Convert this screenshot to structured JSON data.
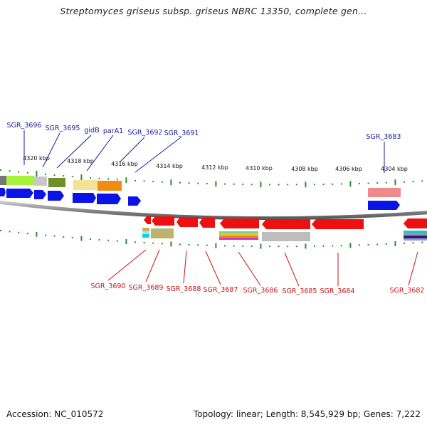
{
  "title": "Streptomyces griseus subsp. griseus NBRC 13350, complete gen...",
  "footer": {
    "accession": "Accession: NC_010572",
    "summary": "Topology: linear; Length: 8,545,929 bp; Genes: 7,222"
  },
  "colors": {
    "forward_label": "#1a1aa0",
    "reverse_label": "#c81414",
    "forward_gene": "#0a14e6",
    "reverse_gene": "#ee1010",
    "ruler_tick": "#2e8b2e",
    "backbone": "#7a7a7a"
  },
  "ruler": {
    "ticks": [
      "4320 kbp",
      "4318 kbp",
      "4316 kbp",
      "4314 kbp",
      "4312 kbp",
      "4310 kbp",
      "4308 kbp",
      "4306 kbp",
      "4304 kbp"
    ]
  },
  "forward_labels": [
    "SGR_3696",
    "SGR_3695",
    "gidB",
    "parA1",
    "SGR_3692",
    "SGR_3691",
    "SGR_3683"
  ],
  "reverse_labels": [
    "SGR_3690",
    "SGR_3689",
    "SGR_3688",
    "SGR_3687",
    "SGR_3686",
    "SGR_3685",
    "SGR_3684",
    "SGR_3682"
  ]
}
